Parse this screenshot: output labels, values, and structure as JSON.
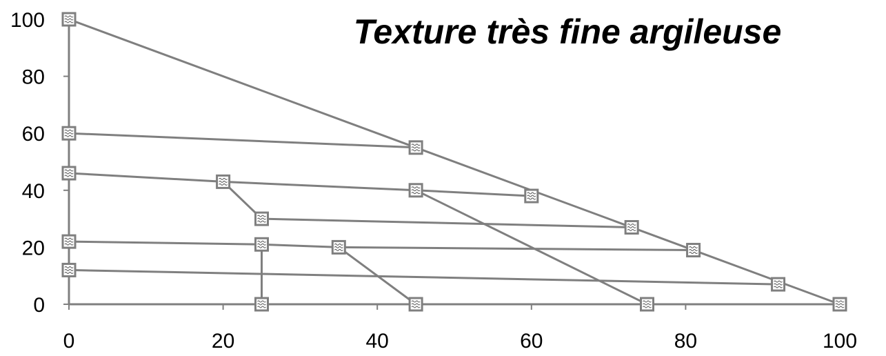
{
  "chart_data": {
    "type": "line",
    "title": "Texture très fine argileuse",
    "xlabel": "",
    "ylabel": "",
    "xlim": [
      0,
      100
    ],
    "ylim": [
      0,
      100
    ],
    "x_ticks": [
      0,
      20,
      40,
      60,
      80,
      100
    ],
    "y_ticks": [
      0,
      20,
      40,
      60,
      80,
      100
    ],
    "grid": false,
    "legend": "none",
    "line_color": "#7f7f7f",
    "marker_border_color": "#7f7f7f",
    "marker_fill_color": "#ffffff",
    "series": [
      {
        "points": [
          [
            0,
            100
          ],
          [
            0,
            0
          ]
        ]
      },
      {
        "points": [
          [
            0,
            0
          ],
          [
            100,
            0
          ]
        ]
      },
      {
        "points": [
          [
            0,
            100
          ],
          [
            100,
            0
          ]
        ]
      },
      {
        "points": [
          [
            0,
            60
          ],
          [
            45,
            55
          ]
        ]
      },
      {
        "points": [
          [
            0,
            46
          ],
          [
            20,
            43
          ],
          [
            25,
            30
          ]
        ]
      },
      {
        "points": [
          [
            20,
            43
          ],
          [
            45,
            40
          ],
          [
            60,
            38
          ]
        ]
      },
      {
        "points": [
          [
            45,
            40
          ],
          [
            75,
            0
          ]
        ]
      },
      {
        "points": [
          [
            25,
            30
          ],
          [
            73,
            27
          ]
        ]
      },
      {
        "points": [
          [
            0,
            22
          ],
          [
            25,
            21
          ],
          [
            35,
            20
          ],
          [
            81,
            19
          ]
        ]
      },
      {
        "points": [
          [
            25,
            21
          ],
          [
            25,
            0
          ]
        ]
      },
      {
        "points": [
          [
            35,
            20
          ],
          [
            45,
            0
          ]
        ]
      },
      {
        "points": [
          [
            0,
            12
          ],
          [
            92,
            7
          ]
        ]
      }
    ],
    "markers": [
      [
        0,
        100
      ],
      [
        0,
        60
      ],
      [
        0,
        46
      ],
      [
        0,
        22
      ],
      [
        0,
        12
      ],
      [
        45,
        55
      ],
      [
        20,
        43
      ],
      [
        45,
        40
      ],
      [
        60,
        38
      ],
      [
        25,
        30
      ],
      [
        73,
        27
      ],
      [
        25,
        21
      ],
      [
        35,
        20
      ],
      [
        81,
        19
      ],
      [
        92,
        7
      ],
      [
        25,
        0
      ],
      [
        45,
        0
      ],
      [
        75,
        0
      ],
      [
        100,
        0
      ]
    ]
  }
}
